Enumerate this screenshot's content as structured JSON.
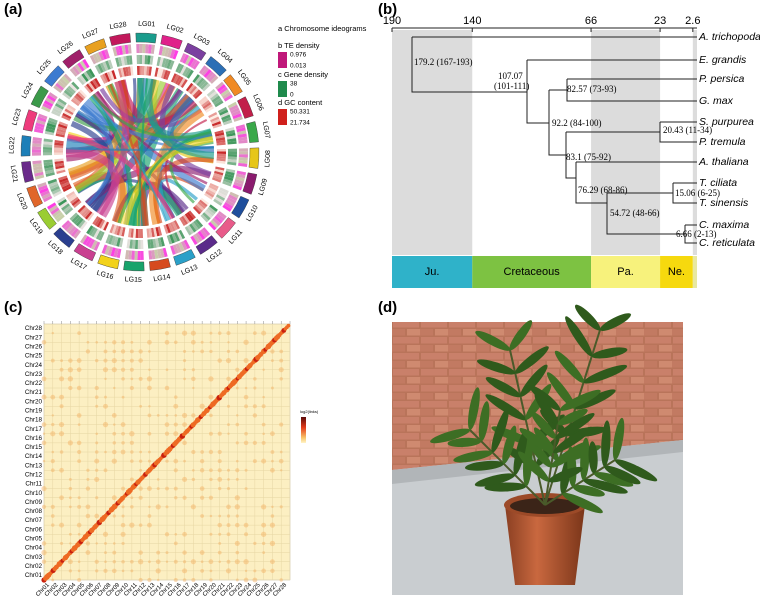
{
  "panel_labels": [
    "(a)",
    "(b)",
    "(c)",
    "(d)"
  ],
  "circos": {
    "chromosomes": [
      "LG01",
      "LG02",
      "LG03",
      "LG04",
      "LG05",
      "LG06",
      "LG07",
      "LG08",
      "LG09",
      "LG10",
      "LG11",
      "LG12",
      "LG13",
      "LG14",
      "LG15",
      "LG16",
      "LG17",
      "LG18",
      "LG19",
      "LG20",
      "LG21",
      "LG22",
      "LG23",
      "LG24",
      "LG25",
      "LG26",
      "LG27",
      "LG28"
    ],
    "legend": {
      "ideograms": "a Chromosome ideograms",
      "te": "b TE density",
      "te_max": "0.976",
      "te_min": "0.013",
      "gene": "c Gene density",
      "gene_max": "38",
      "gene_min": "0",
      "gc": "d GC content",
      "gc_max": "50.331",
      "gc_min": "21.734"
    }
  },
  "tree": {
    "time_ticks": [
      190,
      140,
      66,
      23,
      2.6
    ],
    "eras": [
      "Ju.",
      "Cretaceous",
      "Pa.",
      "Ne."
    ],
    "species": [
      "A. trichopoda",
      "E. grandis",
      "P. persica",
      "G. max",
      "S. purpurea",
      "P. tremula",
      "A. thaliana",
      "T. ciliata",
      "T. sinensis",
      "C. maxima",
      "C. reticulata"
    ],
    "nodes": [
      "179.2 (167-193)",
      "107.07",
      "(101-111)",
      "82.57 (73-93)",
      "92.2 (84-100)",
      "20.43 (11-34)",
      "83.1 (75-92)",
      "76.29 (68-86)",
      "15.06 (6-25)",
      "54.72 (48-66)",
      "6.66 (2-13)"
    ]
  },
  "hic": {
    "chromosomes": [
      "Chr01",
      "Chr02",
      "Chr03",
      "Chr04",
      "Chr05",
      "Chr06",
      "Chr07",
      "Chr08",
      "Chr09",
      "Chr10",
      "Chr11",
      "Chr12",
      "Chr13",
      "Chr14",
      "Chr15",
      "Chr16",
      "Chr17",
      "Chr18",
      "Chr19",
      "Chr20",
      "Chr21",
      "Chr22",
      "Chr23",
      "Chr24",
      "Chr25",
      "Chr26",
      "Chr27",
      "Chr28"
    ],
    "legend_title": "log2(links)"
  }
}
